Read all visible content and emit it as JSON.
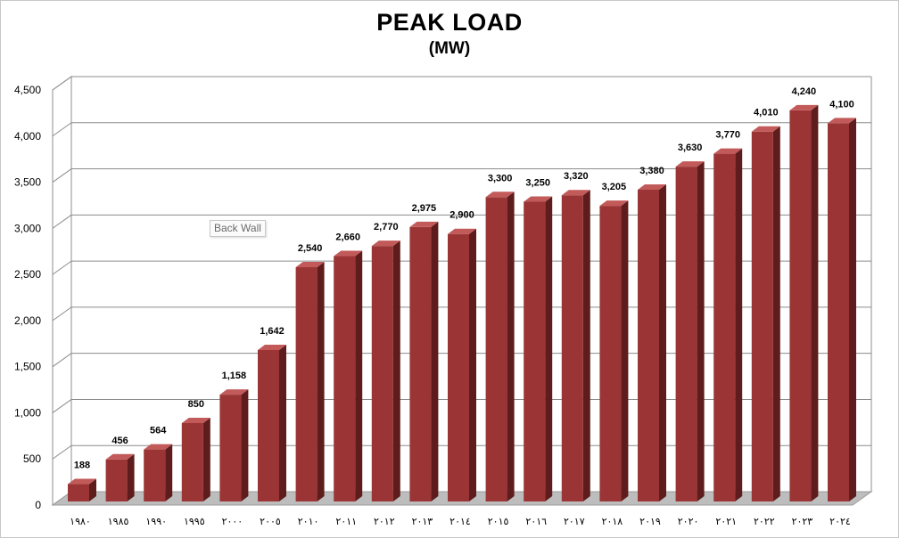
{
  "chart_data": {
    "type": "bar",
    "title": "PEAK LOAD",
    "subtitle": "(MW)",
    "categories": [
      "١٩٨٠",
      "١٩٨٥",
      "١٩٩٠",
      "١٩٩٥",
      "٢٠٠٠",
      "٢٠٠٥",
      "٢٠١٠",
      "٢٠١١",
      "٢٠١٢",
      "٢٠١٣",
      "٢٠١٤",
      "٢٠١٥",
      "٢٠١٦",
      "٢٠١٧",
      "٢٠١٨",
      "٢٠١٩",
      "٢٠٢٠",
      "٢٠٢١",
      "٢٠٢٢",
      "٢٠٢٣",
      "٢٠٢٤"
    ],
    "values": [
      188,
      456,
      564,
      850,
      1158,
      1642,
      2540,
      2660,
      2770,
      2975,
      2900,
      3300,
      3250,
      3320,
      3205,
      3380,
      3630,
      3770,
      4010,
      4240,
      4100
    ],
    "data_labels": [
      "188",
      "456",
      "564",
      "850",
      "1,158",
      "1,642",
      "2,540",
      "2,660",
      "2,770",
      "2,975",
      "2,900",
      "3,300",
      "3,250",
      "3,320",
      "3,205",
      "3,380",
      "3,630",
      "3,770",
      "4,010",
      "4,240",
      "4,100"
    ],
    "yticks": [
      0,
      500,
      1000,
      1500,
      2000,
      2500,
      3000,
      3500,
      4000,
      4500
    ],
    "ytick_labels": [
      "0",
      "500",
      "1,000",
      "1,500",
      "2,000",
      "2,500",
      "3,000",
      "3,500",
      "4,000",
      "4,500"
    ],
    "ylim": [
      0,
      4500
    ],
    "xlabel": "",
    "ylabel": "",
    "grid": true,
    "style": "3d-column",
    "bar_color": "#9b3535",
    "bar_side_color": "#5e1c1c",
    "bar_top_color": "#c25a5a"
  },
  "tooltip": {
    "text": "Back Wall"
  }
}
